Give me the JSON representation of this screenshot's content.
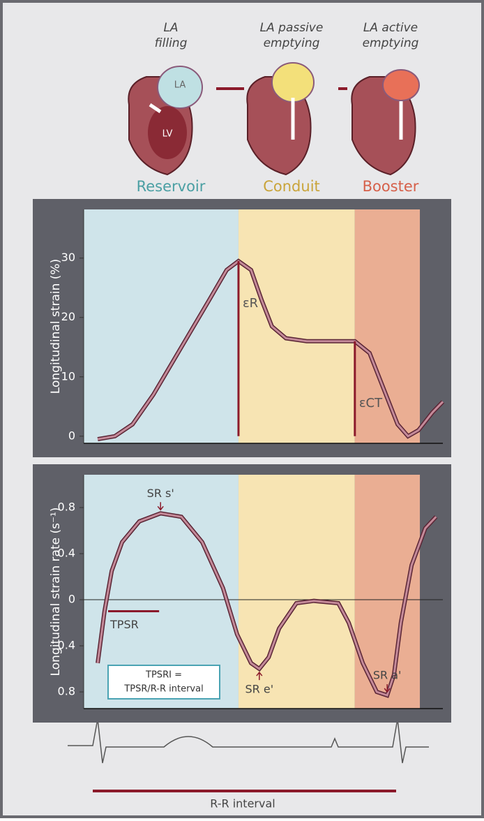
{
  "illustration": {
    "phases": [
      {
        "caption": "LA filling",
        "name": "Reservoir",
        "color": "#4a9fa3"
      },
      {
        "caption": "LA passive emptying",
        "name": "Conduit",
        "color": "#c9a43a"
      },
      {
        "caption": "LA active emptying",
        "name": "Booster",
        "color": "#d6604a"
      }
    ],
    "chamber_labels": [
      "LA",
      "LV"
    ]
  },
  "chart_data": [
    {
      "type": "line",
      "y_label": "Longitudinal strain (%)",
      "xlim": [
        0,
        100
      ],
      "ylim": [
        -1.2,
        38.2
      ],
      "yticks": [
        0,
        10,
        20,
        30
      ],
      "bands": [
        {
          "from": 0,
          "to": 43.1,
          "color": "#cfe4ea"
        },
        {
          "from": 43.1,
          "to": 75.5,
          "color": "#f7e4b3"
        },
        {
          "from": 75.5,
          "to": 93.6,
          "color": "#eaae93"
        }
      ],
      "series": [
        {
          "color": "#c48a99",
          "x": [
            3.9,
            8.7,
            13.6,
            19.4,
            27.2,
            35,
            39.8,
            43.1,
            46.6,
            49.5,
            52.4,
            56.3,
            62.1,
            69.9,
            75.5,
            79.6,
            83.5,
            87.4,
            90.3,
            93.2,
            97.1,
            100
          ],
          "values": [
            -0.5,
            0,
            2,
            7,
            15,
            23,
            28,
            29.5,
            28,
            23,
            18.5,
            16.5,
            16,
            16,
            16,
            14,
            8,
            2,
            0,
            1,
            4,
            5.8
          ]
        }
      ],
      "annotations": [
        {
          "text": "εR",
          "x": 43.1,
          "y_from": 0,
          "y_to": 29.5
        },
        {
          "text": "εCT",
          "x": 75.5,
          "y_from": 0,
          "y_to": 16
        }
      ]
    },
    {
      "type": "line",
      "y_label": "Longitudinal strain rate (s⁻¹)",
      "xlim": [
        0,
        100
      ],
      "ylim": [
        -0.945,
        1.085
      ],
      "yticks": [
        {
          "value": -0.8,
          "label": "0.8"
        },
        {
          "value": -0.4,
          "label": "0.4"
        },
        0,
        0.4,
        0.8
      ],
      "bands": [
        {
          "from": 0,
          "to": 43.1,
          "color": "#cfe4ea"
        },
        {
          "from": 43.1,
          "to": 75.5,
          "color": "#f7e4b3"
        },
        {
          "from": 75.5,
          "to": 93.6,
          "color": "#eaae93"
        }
      ],
      "series": [
        {
          "color": "#c48a99",
          "x": [
            3.9,
            5.8,
            7.8,
            10.7,
            15.5,
            21.4,
            27.2,
            33,
            38.8,
            42.7,
            46.6,
            48.9,
            51.5,
            54.4,
            59.2,
            64.1,
            70.9,
            73.8,
            77.7,
            81.6,
            84.5,
            86.4,
            88.3,
            91.3,
            95.1,
            98.1
          ],
          "values": [
            -0.55,
            -0.1,
            0.25,
            0.5,
            0.68,
            0.75,
            0.72,
            0.5,
            0.1,
            -0.3,
            -0.55,
            -0.6,
            -0.5,
            -0.25,
            -0.03,
            -0.01,
            -0.03,
            -0.2,
            -0.55,
            -0.8,
            -0.83,
            -0.65,
            -0.2,
            0.3,
            0.62,
            0.72
          ]
        }
      ],
      "points": [
        {
          "text": "SR s'",
          "x": 21.4,
          "y": 0.75,
          "side": "above"
        },
        {
          "text": "SR e'",
          "x": 48.9,
          "y": -0.6,
          "side": "below"
        },
        {
          "text": "SR a'",
          "x": 84.5,
          "y": -0.83,
          "side": "above"
        }
      ],
      "segment": {
        "text": "TPSR",
        "from": 6.8,
        "to": 21,
        "y": -0.1
      },
      "box_text": [
        "TPSRI =",
        "TPSR/R-R interval"
      ]
    }
  ],
  "ecg": {
    "label": "R-R interval"
  }
}
